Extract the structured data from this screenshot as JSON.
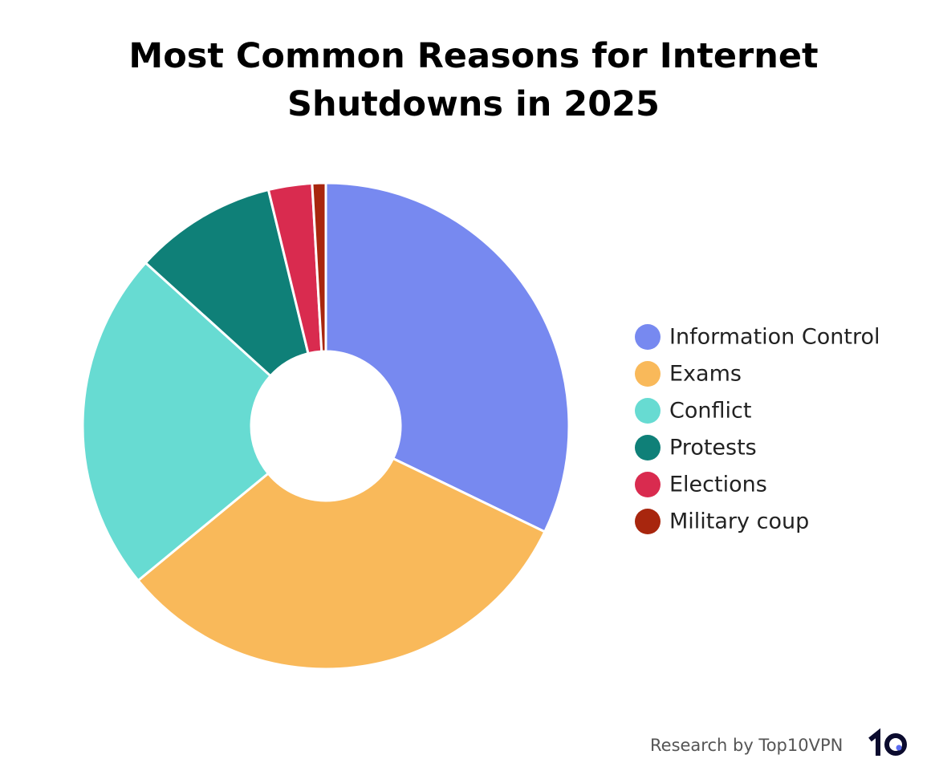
{
  "chart_data": {
    "type": "donut",
    "title": "Most Common Reasons for Internet Shutdowns in 2025",
    "categories": [
      "Information Control",
      "Exams",
      "Conflict",
      "Protests",
      "Elections",
      "Military coup"
    ],
    "values": [
      32.2,
      31.9,
      22.7,
      9.5,
      2.9,
      0.9
    ],
    "colors": [
      "#7789f0",
      "#f9b95a",
      "#67dbd2",
      "#0f8078",
      "#d92b4f",
      "#a8260e"
    ],
    "legend": "right"
  },
  "footer": {
    "credit": "Research by Top10VPN"
  }
}
